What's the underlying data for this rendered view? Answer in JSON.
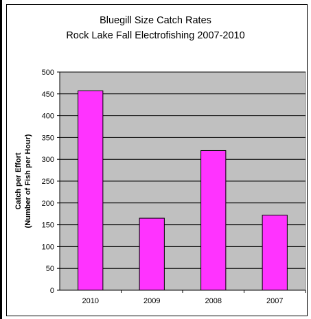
{
  "chart_data": {
    "type": "bar",
    "title_lines": [
      "Bluegill Size Catch Rates",
      "Rock Lake Fall Electrofishing 2007-2010"
    ],
    "ylabel_lines": [
      "Catch per Effort",
      "(Number of Fish per Hour)"
    ],
    "xlabel": "",
    "categories": [
      "2010",
      "2009",
      "2008",
      "2007"
    ],
    "values": [
      457,
      165,
      320,
      172
    ],
    "ylim": [
      0,
      500
    ],
    "yticks": [
      0,
      50,
      100,
      150,
      200,
      250,
      300,
      350,
      400,
      450,
      500
    ],
    "grid": true,
    "legend": "none",
    "colors": {
      "bar_fill": "#ff33ff",
      "bar_stroke": "#000000",
      "plot_background": "#c0c0c0",
      "gridline": "#000000"
    }
  }
}
